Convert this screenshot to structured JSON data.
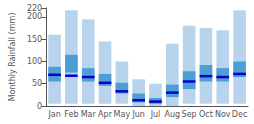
{
  "chart_data": {
    "type": "range_bar",
    "ylabel": "Monthly Rainfall (mm)",
    "categories": [
      "Jan",
      "Feb",
      "Mar",
      "Apr",
      "May",
      "Jun",
      "Jul",
      "Aug",
      "Sep",
      "Oct",
      "Nov",
      "Dec"
    ],
    "series": [
      {
        "type": "range_bar",
        "color": "#b8d4ec",
        "low": [
          5,
          5,
          5,
          5,
          5,
          0,
          0,
          0,
          5,
          5,
          5,
          5
        ],
        "high": [
          160,
          215,
          195,
          145,
          100,
          60,
          50,
          140,
          180,
          175,
          170,
          215
        ]
      },
      {
        "type": "range_bar",
        "color": "#4d9ed4",
        "low": [
          55,
          75,
          55,
          45,
          28,
          8,
          5,
          20,
          38,
          55,
          55,
          65
        ],
        "high": [
          88,
          115,
          85,
          72,
          52,
          28,
          18,
          48,
          78,
          92,
          85,
          100
        ]
      },
      {
        "type": "median_line",
        "color": "#0000cd",
        "values": [
          70,
          68,
          65,
          52,
          33,
          13,
          10,
          30,
          55,
          67,
          65,
          72
        ]
      }
    ],
    "ylim": [
      0,
      220
    ],
    "yticks": [
      0,
      50,
      100,
      150,
      200
    ],
    "grid": false
  }
}
